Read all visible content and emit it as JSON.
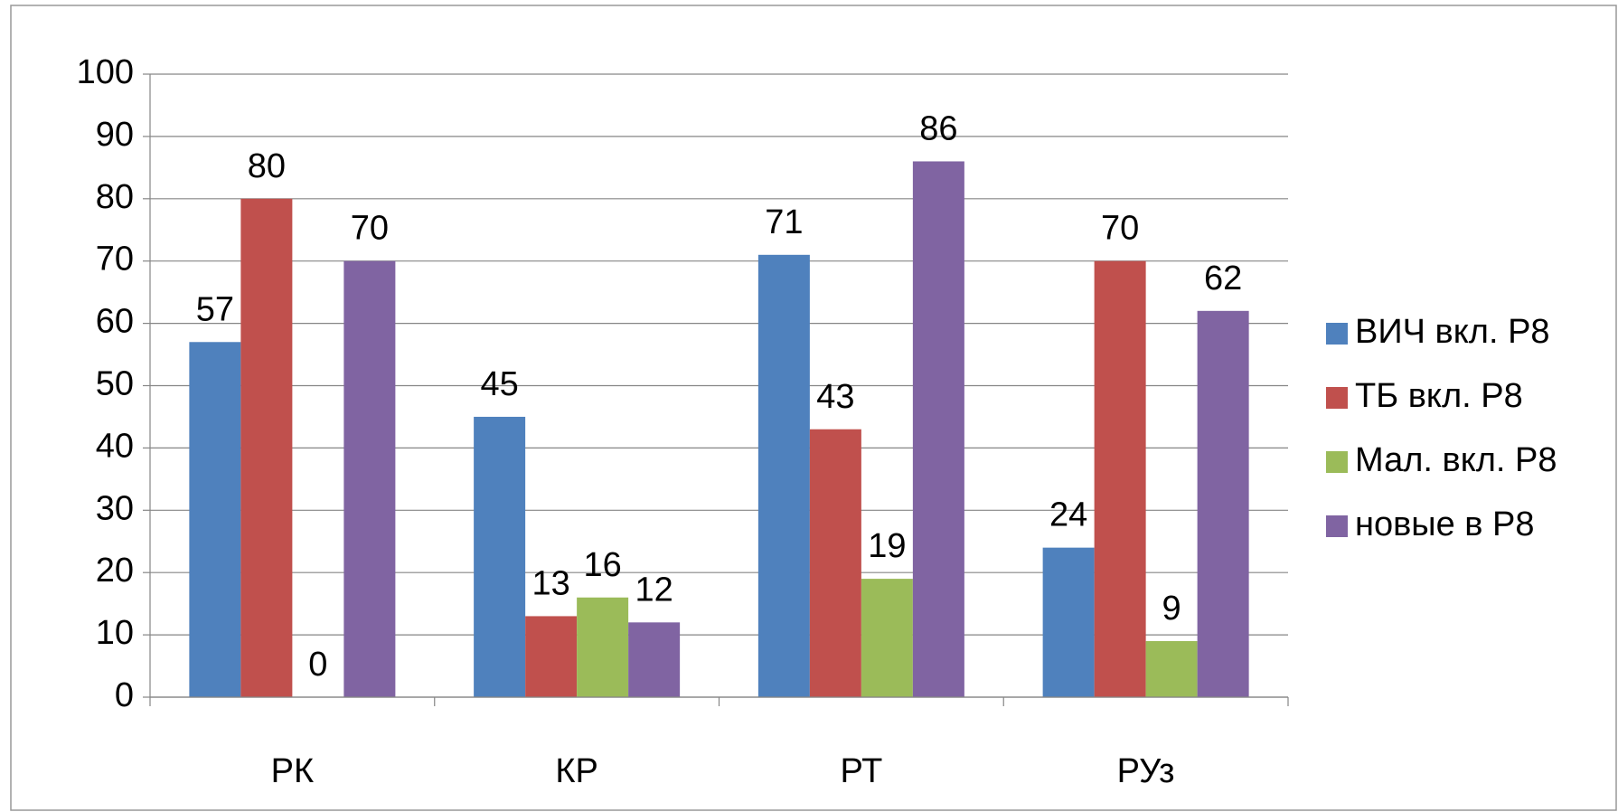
{
  "chart_data": {
    "type": "bar",
    "categories": [
      "РК",
      "КР",
      "РТ",
      "РУз"
    ],
    "series": [
      {
        "name": "ВИЧ вкл. Р8",
        "color": "#4f81bd",
        "values": [
          57,
          45,
          71,
          24
        ]
      },
      {
        "name": "ТБ вкл. Р8",
        "color": "#c0504d",
        "values": [
          80,
          13,
          43,
          70
        ]
      },
      {
        "name": "Мал. вкл. Р8",
        "color": "#9bbb59",
        "values": [
          0,
          16,
          19,
          9
        ]
      },
      {
        "name": "новые в Р8",
        "color": "#8064a2",
        "values": [
          70,
          12,
          86,
          62
        ]
      }
    ],
    "ylim": [
      0,
      100
    ],
    "yticks": [
      0,
      10,
      20,
      30,
      40,
      50,
      60,
      70,
      80,
      90,
      100
    ],
    "grid": true,
    "legend": "right"
  }
}
